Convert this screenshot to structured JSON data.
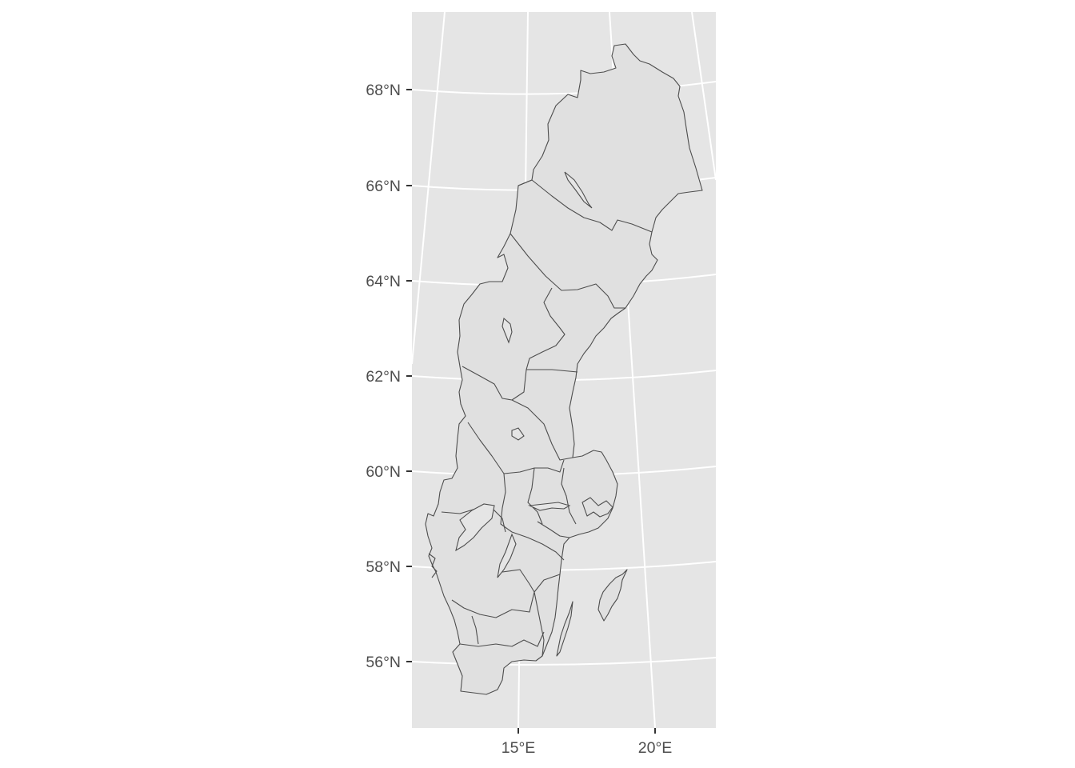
{
  "map": {
    "y_axis_labels": [
      "68°N",
      "66°N",
      "64°N",
      "62°N",
      "60°N",
      "58°N",
      "56°N"
    ],
    "x_axis_labels": [
      "15°E",
      "20°E"
    ],
    "colors": {
      "panel_background": "#e5e5e5",
      "gridline": "#ffffff",
      "region_fill": "#e0e0e0",
      "region_border": "#4d4d4d",
      "axis_text": "#4d4d4d"
    }
  }
}
